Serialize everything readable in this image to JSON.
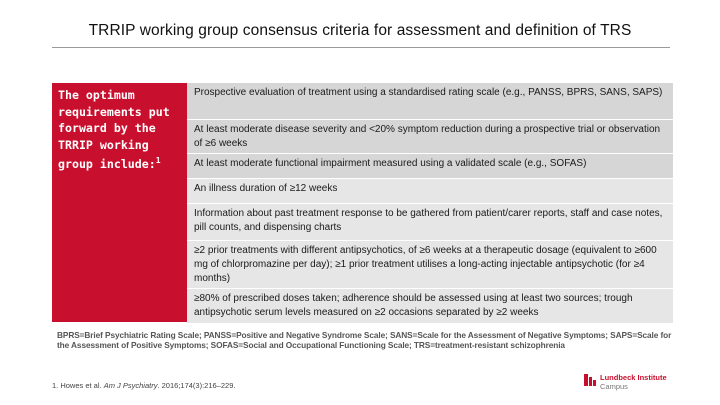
{
  "slide": {
    "title": "TRRIP working group consensus criteria for assessment and definition of TRS",
    "left_box": {
      "text": "The optimum requirements put forward by the TRRIP working group include:",
      "superscript": "1"
    },
    "criteria": [
      "Prospective evaluation of treatment using a standardised rating scale (e.g., PANSS, BPRS, SANS, SAPS)",
      "At least moderate disease severity and <20% symptom reduction during a prospective trial or observation of ≥6 weeks",
      "At least moderate functional impairment measured using a validated scale (e.g., SOFAS)",
      "An illness duration of ≥12 weeks",
      "Information about past treatment response to be gathered from patient/carer reports, staff and case notes, pill counts, and dispensing charts",
      "≥2 prior treatments with different antipsychotics, of ≥6 weeks at a therapeutic dosage (equivalent to ≥600 mg of chlorpromazine per day); ≥1 prior treatment utilises a long-acting injectable antipsychotic (for ≥4 months)",
      "≥80% of prescribed doses taken; adherence should be assessed using at least two sources; trough antipsychotic serum levels measured on ≥2 occasions separated by ≥2 weeks"
    ],
    "abbreviations": "BPRS=Brief Psychiatric Rating Scale; PANSS=Positive and Negative Syndrome Scale; SANS=Scale for the Assessment of Negative Symptoms; SAPS=Scale for the Assessment of Positive Symptoms; SOFAS=Social and Occupational Functioning Scale; TRS=treatment-resistant schizophrenia",
    "reference": {
      "prefix": "1. Howes et al. ",
      "journal": "Am J Psychiatry",
      "suffix": ". 2016;174(3):216–229."
    },
    "logo": {
      "line1": "Lundbeck Institute",
      "line2": "Campus",
      "color": "#c8102e"
    }
  }
}
